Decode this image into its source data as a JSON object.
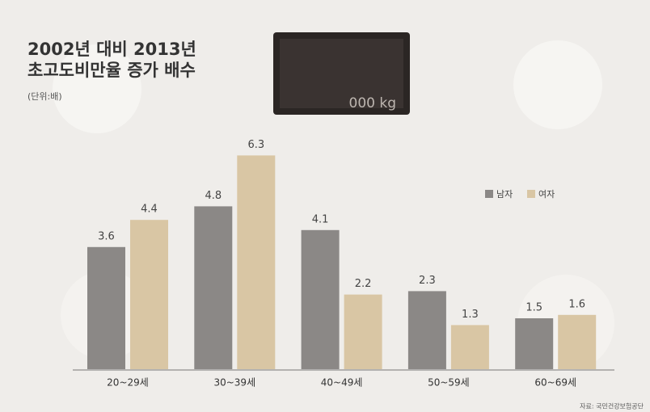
{
  "chart_data": {
    "type": "bar",
    "title": "2002년 대비 2013년 초고도비만율 증가 배수",
    "subtitle": "(단위:배)",
    "categories": [
      "20~29세",
      "30~39세",
      "40~49세",
      "50~59세",
      "60~69세"
    ],
    "series": [
      {
        "name": "남자",
        "color": "#8b8886",
        "values": [
          3.6,
          4.8,
          4.1,
          2.3,
          1.5
        ]
      },
      {
        "name": "여자",
        "color": "#d9c6a4",
        "values": [
          4.4,
          6.3,
          2.2,
          1.3,
          1.6
        ]
      }
    ],
    "annotations": [
      "000 kg"
    ],
    "source": "자료: 국민건강보험공단",
    "legend": "right"
  }
}
